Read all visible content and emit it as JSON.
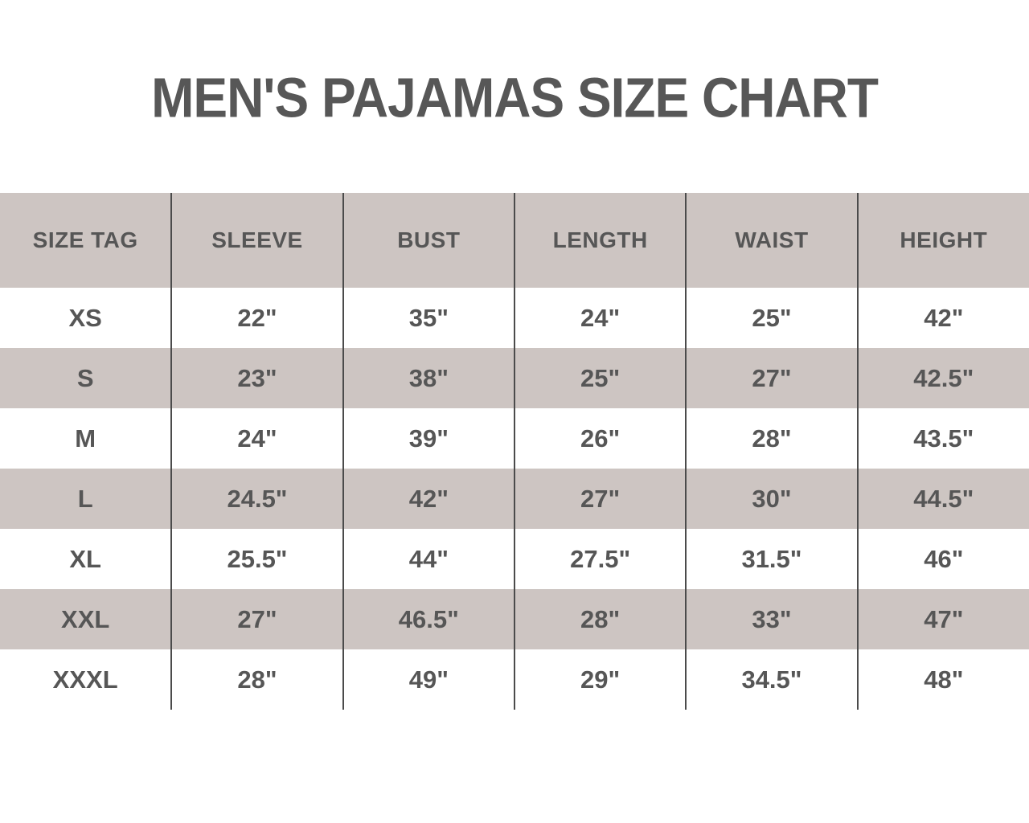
{
  "header": {
    "title": "MEN'S PAJAMAS SIZE CHART"
  },
  "colors": {
    "page_bg": "#ffffff",
    "title_text": "#575757",
    "table_text": "#565656",
    "shaded_row_bg": "#cdc5c2",
    "white_row_bg": "#ffffff",
    "column_divider": "#4b4b4b"
  },
  "chart_data": {
    "type": "table",
    "title": "MEN'S PAJAMAS SIZE CHART",
    "columns": [
      "SIZE TAG",
      "SLEEVE",
      "BUST",
      "LENGTH",
      "WAIST",
      "HEIGHT"
    ],
    "rows": [
      [
        "XS",
        "22\"",
        "35\"",
        "24\"",
        "25\"",
        "42\""
      ],
      [
        "S",
        "23\"",
        "38\"",
        "25\"",
        "27\"",
        "42.5\""
      ],
      [
        "M",
        "24\"",
        "39\"",
        "26\"",
        "28\"",
        "43.5\""
      ],
      [
        "L",
        "24.5\"",
        "42\"",
        "27\"",
        "30\"",
        "44.5\""
      ],
      [
        "XL",
        "25.5\"",
        "44\"",
        "27.5\"",
        "31.5\"",
        "46\""
      ],
      [
        "XXL",
        "27\"",
        "46.5\"",
        "28\"",
        "33\"",
        "47\""
      ],
      [
        "XXXL",
        "28\"",
        "49\"",
        "29\"",
        "34.5\"",
        "48\""
      ]
    ],
    "layout": {
      "row_shading": "alternating starting with shaded header",
      "dividers": "vertical-only",
      "legend": "none",
      "grid": "off"
    }
  }
}
